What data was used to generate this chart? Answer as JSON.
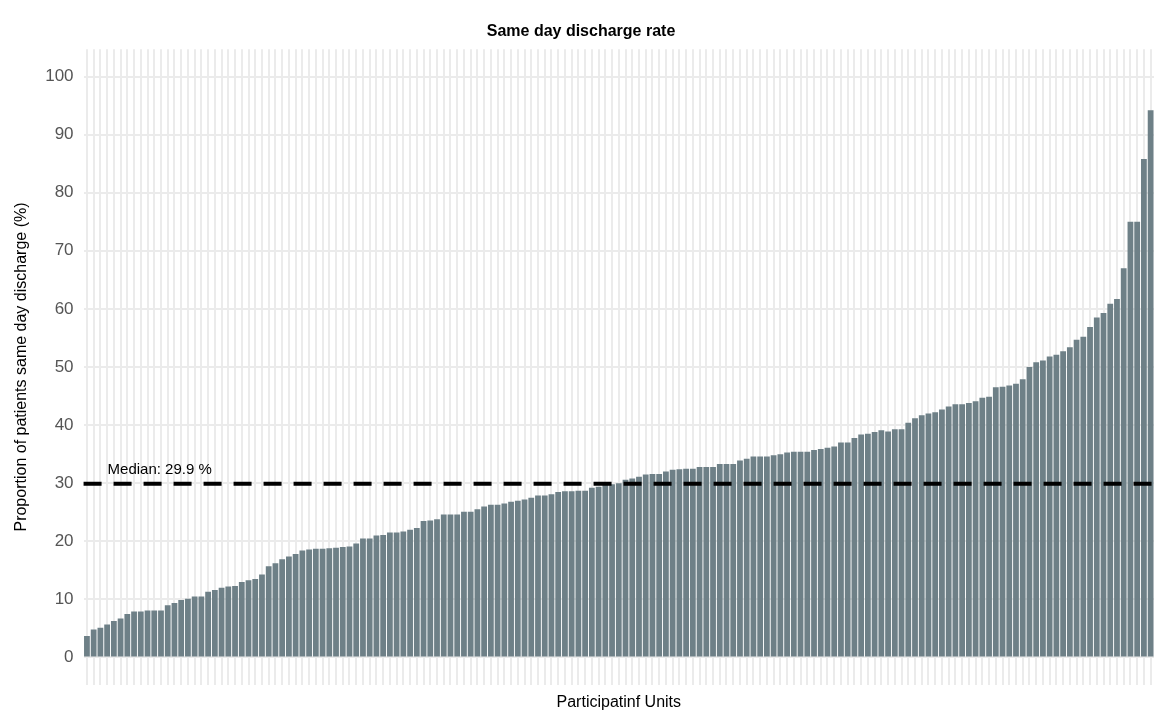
{
  "chart_data": {
    "type": "bar",
    "title": "Same day discharge rate",
    "xlabel": "Participatinf Units",
    "ylabel": "Proportion of patients same day discharge (%)",
    "categories": [
      null,
      null,
      null,
      null,
      null,
      null,
      null,
      null,
      null,
      null,
      null,
      null,
      null,
      null,
      null,
      null,
      null,
      null,
      null,
      null,
      null,
      null,
      null,
      null,
      null,
      null,
      null,
      null,
      null,
      null,
      null,
      null,
      null,
      null,
      null,
      null,
      null,
      null,
      null,
      null,
      null,
      null,
      null,
      null,
      null,
      null,
      null,
      null,
      null,
      null,
      null,
      null,
      null,
      null,
      null,
      null,
      null,
      null,
      null,
      null,
      null,
      null,
      null,
      null,
      null,
      null,
      null,
      null,
      null,
      null,
      null,
      null,
      null,
      null,
      null,
      null,
      null,
      null,
      null,
      null,
      null,
      null,
      null,
      null,
      null,
      null,
      null,
      null,
      null,
      null,
      null,
      null,
      null,
      null,
      null,
      null,
      null,
      null,
      null,
      null,
      null,
      null,
      null,
      null,
      null,
      null,
      null,
      null,
      null,
      null,
      null,
      null,
      null,
      null,
      null,
      null,
      null,
      null,
      null,
      null,
      null,
      null,
      null,
      null,
      null,
      null,
      null,
      null,
      null,
      null,
      null,
      null,
      null,
      null,
      null,
      null,
      null,
      null,
      null,
      null,
      null,
      null,
      null,
      null,
      null,
      null,
      null,
      null,
      null,
      null,
      null,
      null,
      null,
      null,
      null,
      null,
      null,
      null,
      null
    ],
    "values": [
      3.7,
      4.8,
      5.1,
      5.7,
      6.3,
      6.7,
      7.5,
      7.9,
      7.9,
      8.1,
      8.1,
      8.1,
      9.0,
      9.4,
      9.9,
      10.1,
      10.5,
      10.5,
      11.3,
      11.6,
      12.0,
      12.2,
      12.3,
      13.0,
      13.3,
      13.5,
      14.3,
      15.7,
      16.2,
      16.9,
      17.4,
      17.8,
      18.4,
      18.6,
      18.7,
      18.7,
      18.8,
      18.9,
      19.0,
      19.1,
      19.6,
      20.5,
      20.5,
      21.0,
      21.1,
      21.5,
      21.5,
      21.7,
      22.0,
      22.3,
      23.5,
      23.6,
      23.8,
      24.6,
      24.6,
      24.6,
      25.1,
      25.1,
      25.5,
      26.0,
      26.3,
      26.3,
      26.5,
      26.8,
      27.0,
      27.2,
      27.5,
      27.9,
      27.9,
      28.1,
      28.5,
      28.6,
      28.6,
      28.7,
      28.7,
      29.2,
      29.4,
      29.7,
      29.8,
      30.0,
      30.6,
      30.8,
      31.1,
      31.5,
      31.6,
      31.6,
      32.0,
      32.3,
      32.4,
      32.5,
      32.5,
      32.8,
      32.8,
      32.8,
      33.3,
      33.3,
      33.3,
      33.9,
      34.2,
      34.6,
      34.6,
      34.6,
      34.8,
      35.0,
      35.3,
      35.4,
      35.4,
      35.4,
      35.7,
      35.9,
      36.1,
      36.3,
      37.0,
      37.0,
      37.8,
      38.4,
      38.5,
      38.8,
      39.1,
      38.9,
      39.3,
      39.3,
      40.4,
      41.2,
      41.7,
      42.0,
      42.2,
      42.7,
      43.2,
      43.6,
      43.6,
      43.8,
      44.1,
      44.7,
      44.9,
      46.5,
      46.6,
      46.8,
      47.1,
      47.9,
      50.0,
      50.8,
      51.1,
      51.8,
      52.1,
      52.7,
      53.4,
      54.7,
      55.2,
      56.9,
      58.5,
      59.3,
      60.9,
      61.7,
      67.0,
      75.0,
      75.0,
      85.8,
      94.2
    ],
    "color": "#6e8087",
    "ylim": [
      -4.7,
      104.7
    ],
    "yticks": [
      0,
      10,
      20,
      30,
      40,
      50,
      60,
      70,
      80,
      90,
      100
    ],
    "grid": true,
    "tick_labels": "y",
    "ref_lines": [
      {
        "axis": "y",
        "value": 29.9,
        "label": "Median: 29.9 %",
        "color": "#000000",
        "line_style": "dashed"
      }
    ]
  }
}
